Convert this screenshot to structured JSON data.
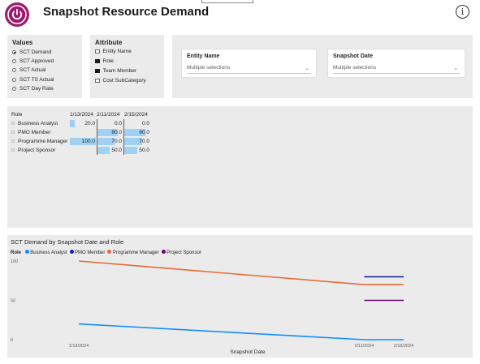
{
  "header": {
    "title": "Snapshot Resource Demand",
    "info_glyph": "i",
    "logo_icon": "power-icon",
    "brand_color": "#9b1b6d"
  },
  "values_panel": {
    "title": "Values",
    "options": [
      {
        "label": "SCT Demand",
        "selected": true
      },
      {
        "label": "SCT Approved",
        "selected": false
      },
      {
        "label": "SCT Actual",
        "selected": false
      },
      {
        "label": "SCT TS Actual",
        "selected": false
      },
      {
        "label": "SCT Day Rate",
        "selected": false
      }
    ]
  },
  "attribute_panel": {
    "title": "Attribute",
    "options": [
      {
        "label": "Entity Name",
        "checked": false
      },
      {
        "label": "Role",
        "checked": true
      },
      {
        "label": "Team Member",
        "checked": true
      },
      {
        "label": "Cost SubCategory",
        "checked": false
      }
    ]
  },
  "entity_slicer": {
    "label": "Entity Name",
    "value": "Multiple selections"
  },
  "snapshot_slicer": {
    "label": "Snapshot Date",
    "value": "Multiple selections"
  },
  "matrix": {
    "headers": [
      "Role",
      "1/13/2024",
      "2/11/2024",
      "2/15/2024"
    ],
    "rows": [
      {
        "label": "Business Analyst",
        "values": [
          "20.0",
          "0.0",
          "0.0"
        ],
        "nums": [
          20,
          0,
          0
        ]
      },
      {
        "label": "PMO Member",
        "values": [
          "",
          "80.0",
          "80.0"
        ],
        "nums": [
          null,
          80,
          80
        ]
      },
      {
        "label": "Programme Manager",
        "values": [
          "100.0",
          "70.0",
          "70.0"
        ],
        "nums": [
          100,
          70,
          70
        ]
      },
      {
        "label": "Project Sponsor",
        "values": [
          "",
          "50.0",
          "50.0"
        ],
        "nums": [
          null,
          50,
          50
        ]
      }
    ],
    "bar_color": "#a0d1f5"
  },
  "chart_data": {
    "type": "line",
    "title": "SCT Demand by Snapshot Date and Role",
    "legend_title": "Role",
    "legend_position": "top-left",
    "xlabel": "Snapshot Date",
    "ylabel": "",
    "x": [
      "1/13/2024",
      "2/11/2024",
      "2/15/2024"
    ],
    "x_days": [
      0,
      29,
      33
    ],
    "yticks": [
      "100",
      "50",
      "0"
    ],
    "ylim": [
      0,
      100
    ],
    "grid": false,
    "series": [
      {
        "name": "Business Analyst",
        "color": "#118dff",
        "values": [
          20,
          0,
          0
        ]
      },
      {
        "name": "PMO Member",
        "color": "#12239e",
        "values": [
          null,
          80,
          80
        ]
      },
      {
        "name": "Programme Manager",
        "color": "#e66c37",
        "values": [
          100,
          70,
          70
        ]
      },
      {
        "name": "Project Sponsor",
        "color": "#6b007b",
        "values": [
          null,
          50,
          50
        ]
      }
    ]
  }
}
